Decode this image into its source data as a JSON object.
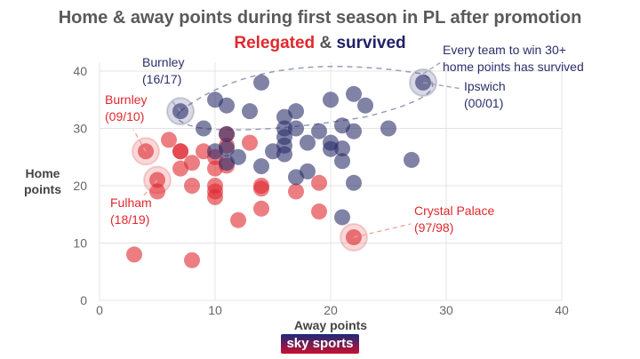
{
  "chart_data": {
    "type": "scatter",
    "title": "Home & away points during first season in PL after promotion",
    "subtitle": {
      "relegated": "Relegated",
      "amp": "&",
      "survived": "survived"
    },
    "xlabel": "Away points",
    "ylabel": "Home points",
    "xlim": [
      0,
      40
    ],
    "ylim": [
      0,
      40
    ],
    "xticks": [
      0,
      10,
      20,
      30,
      40
    ],
    "yticks": [
      0,
      10,
      20,
      30,
      40
    ],
    "grid": true,
    "colors": {
      "relegated": "#e0282e",
      "survived": "#2b2f6b"
    },
    "series": [
      {
        "name": "Relegated",
        "points": [
          [
            3,
            8
          ],
          [
            8,
            7
          ],
          [
            4,
            26
          ],
          [
            5,
            21
          ],
          [
            5,
            19
          ],
          [
            6,
            28
          ],
          [
            7,
            26
          ],
          [
            7,
            26
          ],
          [
            7,
            23
          ],
          [
            8,
            24
          ],
          [
            8,
            20
          ],
          [
            9,
            26
          ],
          [
            10,
            23
          ],
          [
            10,
            20
          ],
          [
            10,
            19
          ],
          [
            10,
            18
          ],
          [
            10,
            25
          ],
          [
            11,
            29
          ],
          [
            11,
            27
          ],
          [
            11,
            23.5
          ],
          [
            12,
            14
          ],
          [
            13,
            27.5
          ],
          [
            14,
            19.5
          ],
          [
            14,
            20
          ],
          [
            14,
            16
          ],
          [
            17,
            19
          ],
          [
            19,
            20.5
          ],
          [
            19,
            15.5
          ],
          [
            22,
            11
          ]
        ]
      },
      {
        "name": "Survived",
        "points": [
          [
            7,
            33
          ],
          [
            10,
            35
          ],
          [
            11,
            34
          ],
          [
            13,
            33
          ],
          [
            9,
            30
          ],
          [
            10,
            26
          ],
          [
            11,
            26.5
          ],
          [
            12,
            25
          ],
          [
            14,
            23.4
          ],
          [
            14,
            38
          ],
          [
            17,
            33
          ],
          [
            16,
            32
          ],
          [
            16,
            30
          ],
          [
            16,
            28.5
          ],
          [
            16,
            27
          ],
          [
            15,
            26
          ],
          [
            16,
            25.5
          ],
          [
            17,
            30
          ],
          [
            18,
            27.5
          ],
          [
            19,
            29.5
          ],
          [
            20,
            35
          ],
          [
            22,
            36
          ],
          [
            23,
            34
          ],
          [
            21,
            30.5
          ],
          [
            22,
            29.5
          ],
          [
            20,
            27.5
          ],
          [
            20,
            26.4
          ],
          [
            21,
            26.5
          ],
          [
            21,
            24.3
          ],
          [
            25,
            30
          ],
          [
            27,
            24.5
          ],
          [
            17,
            21.5
          ],
          [
            18,
            22.5
          ],
          [
            22,
            20.5
          ],
          [
            21,
            14.5
          ],
          [
            28,
            38
          ],
          [
            11,
            29
          ],
          [
            11,
            24
          ]
        ]
      }
    ],
    "annotations": [
      {
        "text": [
          "Burnley",
          "(16/17)"
        ],
        "series": "Survived",
        "point": [
          7,
          33
        ]
      },
      {
        "text": [
          "Burnley",
          "(09/10)"
        ],
        "series": "Relegated",
        "point": [
          4,
          26
        ]
      },
      {
        "text": [
          "Fulham",
          "(18/19)"
        ],
        "series": "Relegated",
        "point": [
          5,
          21
        ]
      },
      {
        "text": [
          "Crystal Palace",
          "(97/98)"
        ],
        "series": "Relegated",
        "point": [
          22,
          11
        ]
      },
      {
        "text": [
          "Ipswich",
          "(00/01)"
        ],
        "series": "Survived",
        "point": [
          28,
          38
        ]
      },
      {
        "text": [
          "Every team to win 30+",
          "home points has survived"
        ],
        "series": "Survived"
      }
    ]
  },
  "brand": "sky sports"
}
